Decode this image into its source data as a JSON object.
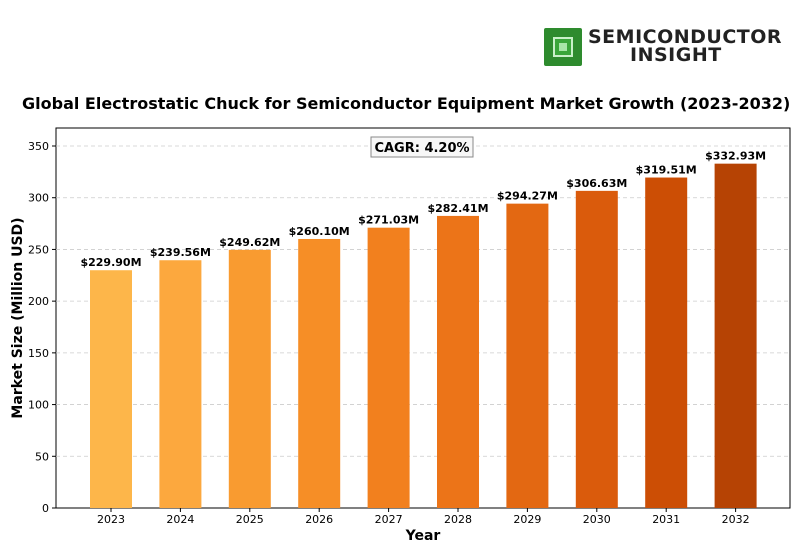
{
  "brand": {
    "line1": "SEMICONDUCTOR",
    "line2": "INSIGHT",
    "icon": "chip-icon"
  },
  "chart_data": {
    "type": "bar",
    "title": "Global Electrostatic Chuck for Semiconductor Equipment Market Growth (2023-2032)",
    "xlabel": "Year",
    "ylabel": "Market Size (Million USD)",
    "categories": [
      "2023",
      "2024",
      "2025",
      "2026",
      "2027",
      "2028",
      "2029",
      "2030",
      "2031",
      "2032"
    ],
    "values": [
      229.9,
      239.56,
      249.62,
      260.1,
      271.03,
      282.41,
      294.27,
      306.63,
      319.51,
      332.93
    ],
    "value_labels": [
      "$229.90M",
      "$239.56M",
      "$249.62M",
      "$260.10M",
      "$271.03M",
      "$282.41M",
      "$294.27M",
      "$306.63M",
      "$319.51M",
      "$332.93M"
    ],
    "ylim": [
      0,
      365
    ],
    "yticks": [
      0,
      50,
      100,
      150,
      200,
      250,
      300,
      350
    ],
    "grid": "y-dashed",
    "annotation": "CAGR: 4.20%",
    "colors": [
      "#fdb64a",
      "#fca83e",
      "#f99b30",
      "#f68e26",
      "#f2801e",
      "#ec7418",
      "#e36812",
      "#da5b0c",
      "#cc4e05",
      "#b64304"
    ]
  }
}
